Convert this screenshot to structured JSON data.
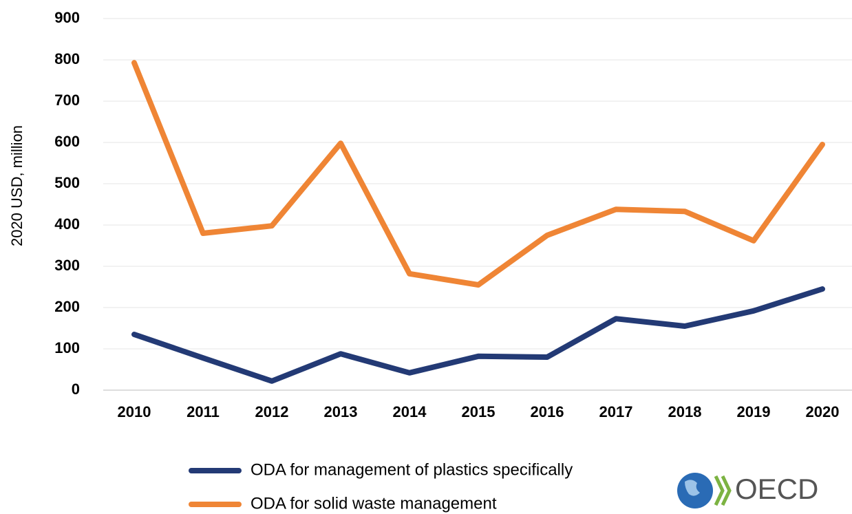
{
  "chart_data": {
    "type": "line",
    "y_label": "2020 USD, million",
    "x": [
      "2010",
      "2011",
      "2012",
      "2013",
      "2014",
      "2015",
      "2016",
      "2017",
      "2018",
      "2019",
      "2020"
    ],
    "series": [
      {
        "name": "ODA for management of plastics specifically",
        "color": "#233a75",
        "values": [
          135,
          78,
          22,
          88,
          42,
          82,
          80,
          173,
          155,
          192,
          245
        ]
      },
      {
        "name": "ODA for solid waste management",
        "color": "#ef8535",
        "values": [
          793,
          380,
          398,
          598,
          282,
          255,
          375,
          438,
          433,
          362,
          595
        ]
      }
    ],
    "ylim": [
      0,
      900
    ],
    "yticks": [
      0,
      100,
      200,
      300,
      400,
      500,
      600,
      700,
      800,
      900
    ],
    "grid": true,
    "legend": "bottom",
    "logo": "OECD"
  }
}
